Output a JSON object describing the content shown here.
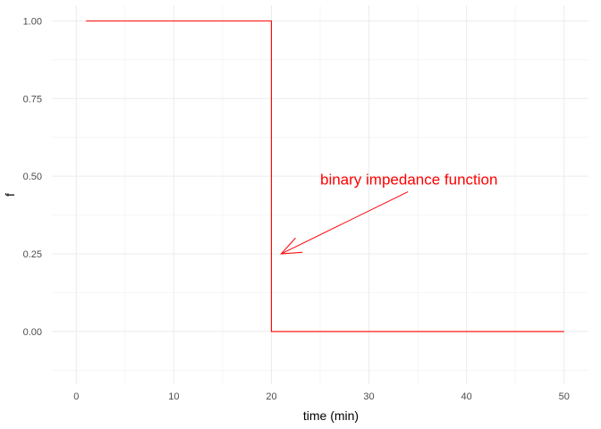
{
  "chart_data": {
    "type": "line",
    "title": "",
    "xlabel": "time (min)",
    "ylabel": "f",
    "xlim": [
      -2.5,
      52.5
    ],
    "ylim": [
      -0.17,
      1.05
    ],
    "x_ticks": [
      0,
      10,
      20,
      30,
      40,
      50
    ],
    "y_ticks": [
      0.0,
      0.25,
      0.5,
      0.75,
      1.0
    ],
    "x_tick_labels": [
      "0",
      "10",
      "20",
      "30",
      "40",
      "50"
    ],
    "y_tick_labels": [
      "0.00",
      "0.25",
      "0.50",
      "0.75",
      "1.00"
    ],
    "grid": true,
    "legend": "none",
    "series": [
      {
        "color": "#ff0000",
        "points": [
          [
            1,
            1.0
          ],
          [
            20,
            1.0
          ],
          [
            20,
            0.5
          ],
          [
            20,
            0.0
          ],
          [
            50,
            0.0
          ]
        ]
      }
    ],
    "annotations": [
      {
        "text": "binary impedance function",
        "color": "#ff0000",
        "text_x": 25,
        "text_y": 0.49,
        "arrow_from": [
          34,
          0.45
        ],
        "arrow_to": [
          21,
          0.25
        ]
      }
    ]
  }
}
